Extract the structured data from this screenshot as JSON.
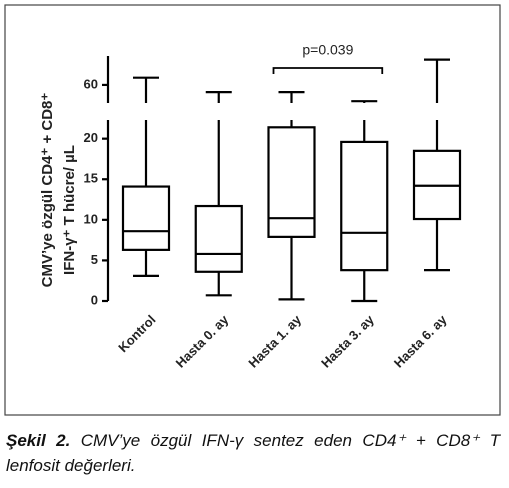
{
  "chart_data": {
    "type": "box",
    "y_label_lines": [
      "CMV’ye özgül CD4⁺ + CD8⁺",
      "IFN-γ⁺ T hücre/ µL"
    ],
    "categories": [
      "Kontrol",
      "Hasta   0. ay",
      "Hasta   1. ay",
      "Hasta   3. ay",
      "Hasta   6. ay"
    ],
    "min": [
      3.1,
      0.7,
      0.2,
      0,
      3.8
    ],
    "q1": [
      6.3,
      3.6,
      7.9,
      3.8,
      10.1
    ],
    "median": [
      8.6,
      5.8,
      10.2,
      8.4,
      14.2
    ],
    "q3": [
      14.1,
      11.7,
      21.4,
      19.6,
      18.5
    ],
    "max": [
      62,
      58,
      58,
      55.5,
      67
    ],
    "ylim": [
      0,
      22.3
    ],
    "yticks": [
      0,
      5,
      10,
      15,
      20
    ],
    "ylim_upper": [
      55,
      68
    ],
    "yticks_upper": [
      60
    ],
    "annotation": {
      "text": "p=0.039",
      "from": 2,
      "to": 3
    },
    "color": "#000000"
  },
  "caption": {
    "label": "Şekil 2.",
    "text": "CMV’ye özgül IFN-γ sentez eden CD4⁺ + CD8⁺ T lenfosit değerleri."
  }
}
